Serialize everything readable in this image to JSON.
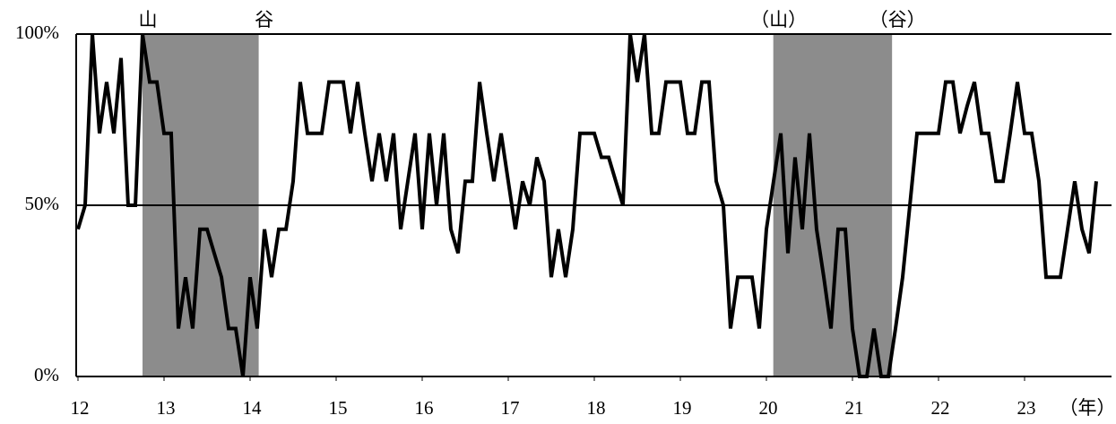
{
  "chart_data": {
    "type": "line",
    "x_label": "（年）",
    "x": [
      12,
      12.083,
      12.167,
      12.25,
      12.333,
      12.417,
      12.5,
      12.583,
      12.667,
      12.75,
      12.833,
      12.917,
      13,
      13.083,
      13.167,
      13.25,
      13.333,
      13.417,
      13.5,
      13.583,
      13.667,
      13.75,
      13.833,
      13.917,
      14,
      14.083,
      14.167,
      14.25,
      14.333,
      14.417,
      14.5,
      14.583,
      14.667,
      14.75,
      14.833,
      14.917,
      15,
      15.083,
      15.167,
      15.25,
      15.333,
      15.417,
      15.5,
      15.583,
      15.667,
      15.75,
      15.833,
      15.917,
      16,
      16.083,
      16.167,
      16.25,
      16.333,
      16.417,
      16.5,
      16.583,
      16.667,
      16.75,
      16.833,
      16.917,
      17,
      17.083,
      17.167,
      17.25,
      17.333,
      17.417,
      17.5,
      17.583,
      17.667,
      17.75,
      17.833,
      17.917,
      18,
      18.083,
      18.167,
      18.25,
      18.333,
      18.417,
      18.5,
      18.583,
      18.667,
      18.75,
      18.833,
      18.917,
      19,
      19.083,
      19.167,
      19.25,
      19.333,
      19.417,
      19.5,
      19.583,
      19.667,
      19.75,
      19.833,
      19.917,
      20,
      20.083,
      20.167,
      20.25,
      20.333,
      20.417,
      20.5,
      20.583,
      20.667,
      20.75,
      20.833,
      20.917,
      21,
      21.083,
      21.167,
      21.25,
      21.333,
      21.417,
      21.5,
      21.583,
      21.667,
      21.75,
      21.833,
      21.917,
      22,
      22.083,
      22.167,
      22.25,
      22.333,
      22.417,
      22.5,
      22.583,
      22.667,
      22.75,
      22.833,
      22.917,
      23,
      23.083,
      23.167,
      23.25,
      23.333,
      23.417,
      23.5,
      23.583,
      23.667,
      23.75,
      23.833
    ],
    "series": [
      {
        "color": "#000000",
        "values": [
          43,
          50,
          100,
          71,
          86,
          71,
          93,
          50,
          50,
          100,
          86,
          86,
          71,
          71,
          14,
          29,
          14,
          43,
          43,
          36,
          29,
          14,
          14,
          0,
          29,
          14,
          43,
          29,
          43,
          43,
          57,
          86,
          71,
          71,
          71,
          86,
          86,
          86,
          71,
          86,
          71,
          57,
          71,
          57,
          71,
          43,
          57,
          71,
          43,
          71,
          50,
          71,
          43,
          36,
          57,
          57,
          86,
          71,
          57,
          71,
          57,
          43,
          57,
          50,
          64,
          57,
          29,
          43,
          29,
          43,
          71,
          71,
          71,
          64,
          64,
          57,
          50,
          100,
          86,
          100,
          71,
          71,
          86,
          86,
          86,
          71,
          71,
          86,
          86,
          57,
          50,
          14,
          29,
          29,
          29,
          14,
          43,
          57,
          71,
          36,
          64,
          43,
          71,
          43,
          29,
          14,
          43,
          43,
          14,
          0,
          0,
          14,
          0,
          0,
          14,
          29,
          50,
          71,
          71,
          71,
          71,
          86,
          86,
          71,
          79,
          86,
          71,
          71,
          57,
          57,
          71,
          86,
          71,
          71,
          57,
          29,
          29,
          29,
          43,
          57,
          43,
          36,
          57
        ]
      }
    ],
    "xlim": [
      12,
      24
    ],
    "xticks": [
      12,
      13,
      14,
      15,
      16,
      17,
      18,
      19,
      20,
      21,
      22,
      23
    ],
    "ylim": [
      0,
      100
    ],
    "yticks": [
      {
        "value": 0,
        "label": "0%"
      },
      {
        "value": 50,
        "label": "50%"
      },
      {
        "value": 100,
        "label": "100%"
      }
    ],
    "grid": true,
    "shaded_regions": [
      {
        "start": 12.75,
        "end": 14.1,
        "start_label": "山",
        "end_label": "谷",
        "color": "#8c8c8c"
      },
      {
        "start": 20.08,
        "end": 21.46,
        "start_label": "（山）",
        "end_label": "（谷）",
        "color": "#8c8c8c"
      }
    ]
  }
}
